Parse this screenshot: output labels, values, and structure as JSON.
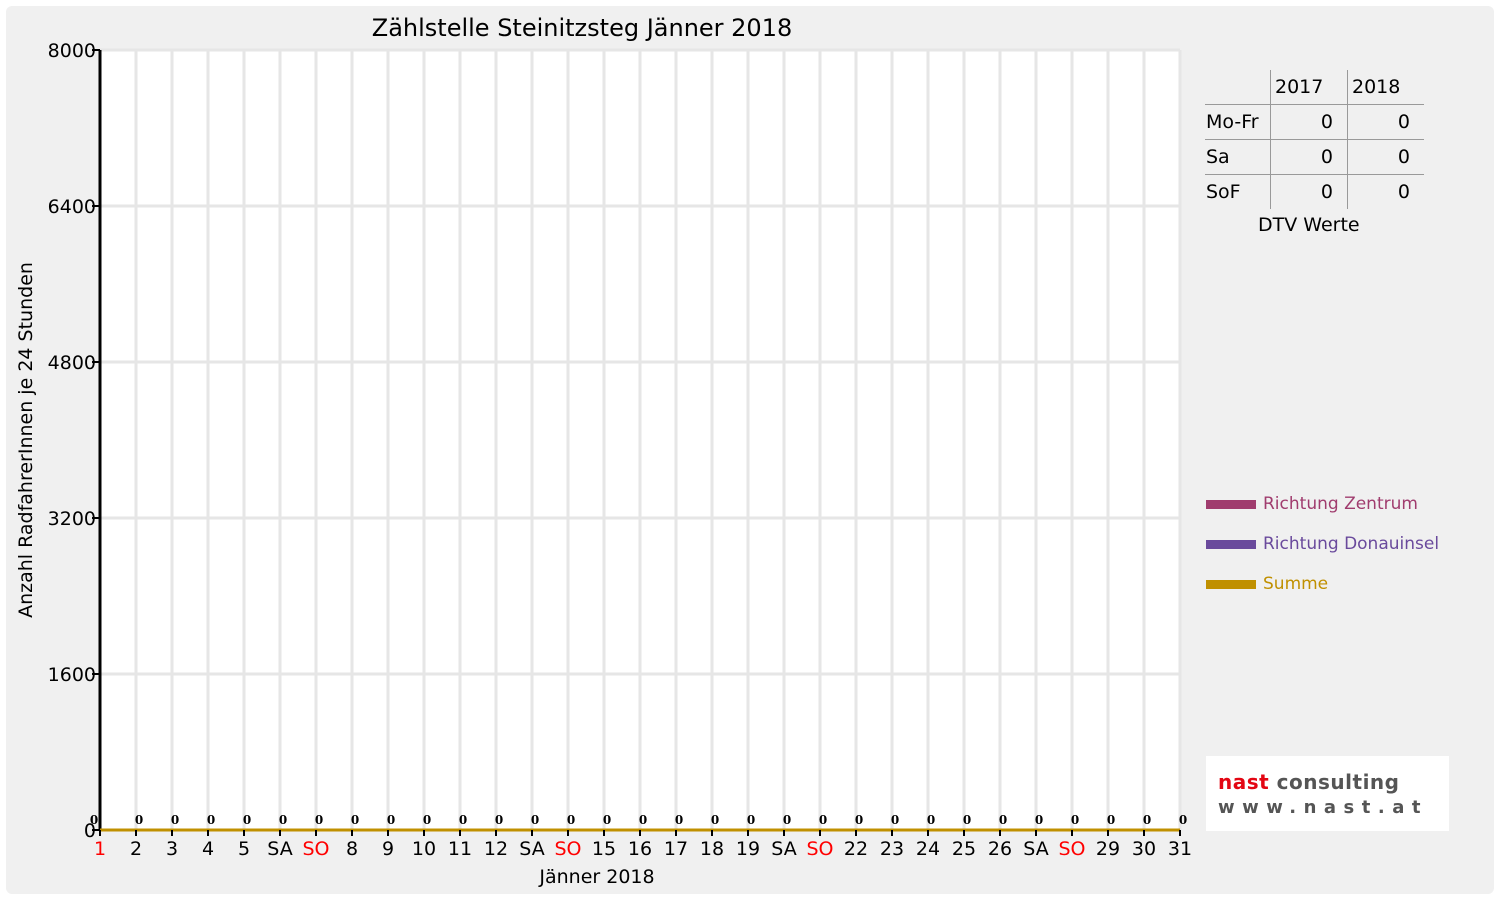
{
  "chart_data": {
    "type": "line",
    "title": "Zählstelle Steinitzsteg Jänner 2018",
    "xlabel": "Jänner 2018",
    "ylabel": "Anzahl RadfahrerInnen je 24 Stunden",
    "ylim": [
      0,
      8000
    ],
    "yticks": [
      0,
      1600,
      3200,
      4800,
      6400,
      8000
    ],
    "grid": true,
    "legend_position": "right",
    "categories": [
      "1",
      "2",
      "3",
      "4",
      "5",
      "SA",
      "SO",
      "8",
      "9",
      "10",
      "11",
      "12",
      "SA",
      "SO",
      "15",
      "16",
      "17",
      "18",
      "19",
      "SA",
      "SO",
      "22",
      "23",
      "24",
      "25",
      "26",
      "SA",
      "SO",
      "29",
      "30",
      "31"
    ],
    "highlight_categories": [
      0,
      6,
      13,
      20,
      27
    ],
    "series": [
      {
        "name": "Richtung Zentrum",
        "color": "#a03c6e",
        "values": [
          0,
          0,
          0,
          0,
          0,
          0,
          0,
          0,
          0,
          0,
          0,
          0,
          0,
          0,
          0,
          0,
          0,
          0,
          0,
          0,
          0,
          0,
          0,
          0,
          0,
          0,
          0,
          0,
          0,
          0,
          0
        ]
      },
      {
        "name": "Richtung Donauinsel",
        "color": "#6a4a9c",
        "values": [
          0,
          0,
          0,
          0,
          0,
          0,
          0,
          0,
          0,
          0,
          0,
          0,
          0,
          0,
          0,
          0,
          0,
          0,
          0,
          0,
          0,
          0,
          0,
          0,
          0,
          0,
          0,
          0,
          0,
          0,
          0
        ]
      },
      {
        "name": "Summe",
        "color": "#c09000",
        "values": [
          0,
          0,
          0,
          0,
          0,
          0,
          0,
          0,
          0,
          0,
          0,
          0,
          0,
          0,
          0,
          0,
          0,
          0,
          0,
          0,
          0,
          0,
          0,
          0,
          0,
          0,
          0,
          0,
          0,
          0,
          0
        ]
      }
    ],
    "data_labels": [
      "0",
      "0",
      "0",
      "0",
      "0",
      "0",
      "0",
      "0",
      "0",
      "0",
      "0",
      "0",
      "0",
      "0",
      "0",
      "0",
      "0",
      "0",
      "0",
      "0",
      "0",
      "0",
      "0",
      "0",
      "0",
      "0",
      "0",
      "0",
      "0",
      "0",
      "0"
    ]
  },
  "dtv_table": {
    "caption": "DTV Werte",
    "years": [
      "2017",
      "2018"
    ],
    "rows": [
      {
        "label": "Mo-Fr",
        "values": [
          "0",
          "0"
        ]
      },
      {
        "label": "Sa",
        "values": [
          "0",
          "0"
        ]
      },
      {
        "label": "SoF",
        "values": [
          "0",
          "0"
        ]
      }
    ]
  },
  "logo": {
    "word1": "nast",
    "word2": "consulting",
    "url": "www.nast.at"
  },
  "colors": {
    "highlight": "#ff0000",
    "grid": "#e6e6e6",
    "axis": "#000000"
  }
}
